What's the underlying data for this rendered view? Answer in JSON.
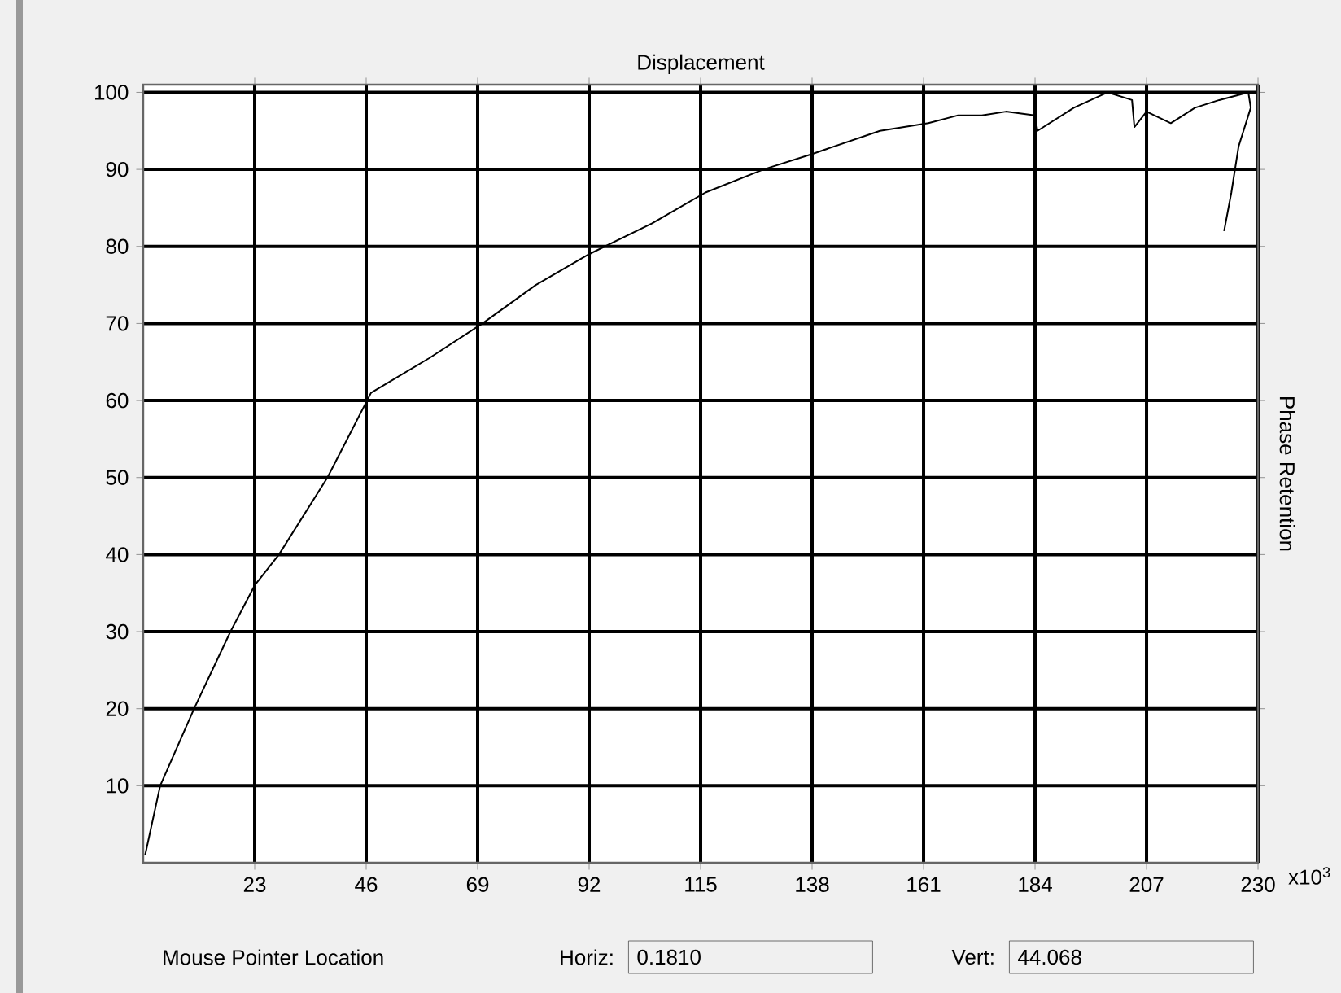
{
  "chart_data": {
    "type": "line",
    "title": "Displacement",
    "ylabel": "Phase Retention",
    "xlabel": "x10$^{3}$",
    "x": [
      0.4,
      3.5,
      10.5,
      18,
      23,
      28,
      38,
      47,
      59,
      70,
      81,
      92,
      105,
      116,
      128,
      138,
      152,
      162,
      168,
      173,
      178,
      184,
      184.5,
      192,
      199,
      204,
      204.5,
      207,
      212,
      217,
      222,
      228,
      228.5,
      226,
      224.5,
      223
    ],
    "series": [
      {
        "color": "#000000",
        "values": [
          1,
          10,
          20,
          30,
          36,
          40,
          50,
          61,
          65.5,
          70,
          75,
          79,
          83,
          87,
          90,
          92,
          95,
          96,
          97,
          97,
          97.5,
          97,
          95,
          98,
          100,
          99,
          95.5,
          97.5,
          96,
          98,
          99,
          100,
          98,
          93,
          87,
          82
        ]
      }
    ],
    "xlim": [
      0,
      230
    ],
    "ylim": [
      0,
      101
    ],
    "xticks": [
      23,
      46,
      69,
      92,
      115,
      138,
      161,
      184,
      207,
      230
    ],
    "yticks": [
      10,
      20,
      30,
      40,
      50,
      60,
      70,
      80,
      90,
      100
    ],
    "grid": true,
    "marker": "none",
    "line_style": "solid",
    "annotations": [
      "Mouse Pointer Location",
      "Horiz:",
      "0.1810",
      "Vert:",
      "44.068"
    ]
  }
}
